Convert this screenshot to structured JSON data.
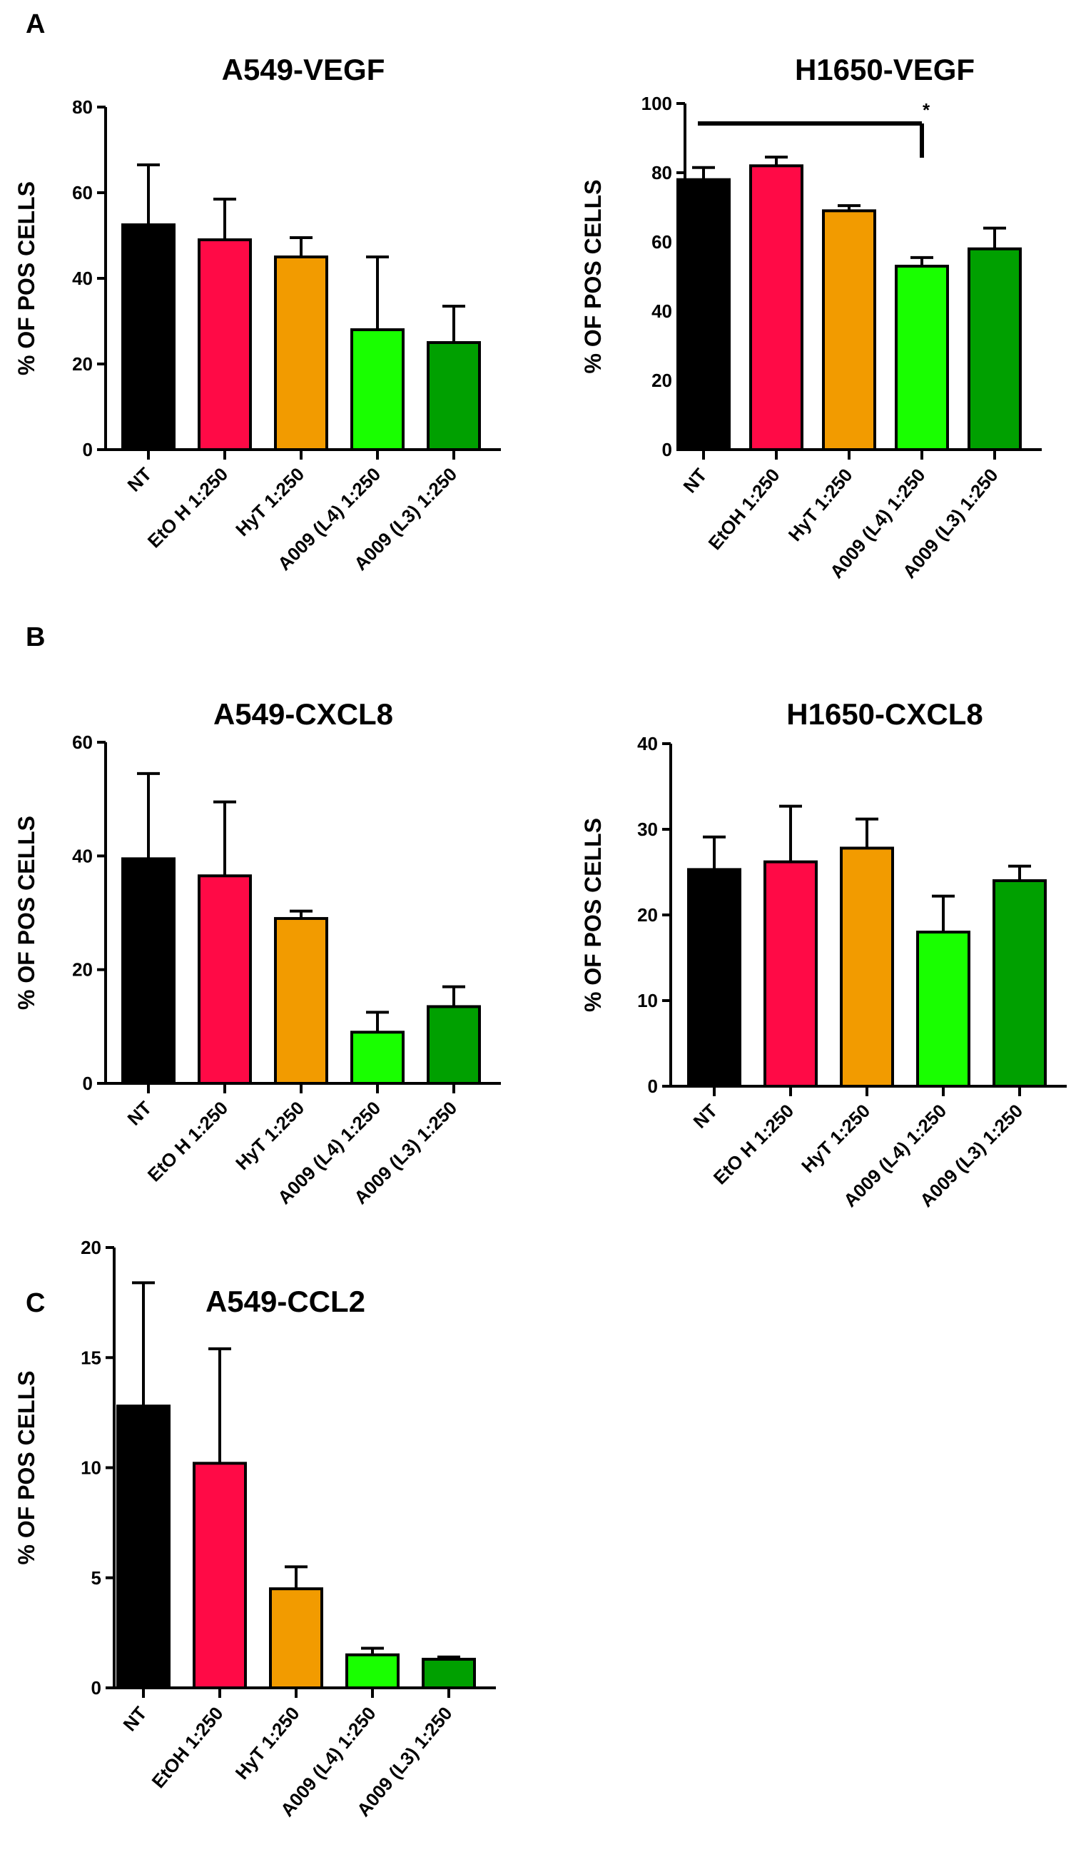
{
  "panel_labels": [
    "A",
    "B",
    "C"
  ],
  "colors": {
    "NT": "#000000",
    "EtOH": "#ff0a46",
    "HyT": "#f29b00",
    "A009_L4": "#19ff00",
    "A009_L3": "#00a000",
    "axis": "#000000"
  },
  "chart_data": [
    {
      "id": "a549-vegf",
      "panel": "A",
      "type": "bar",
      "title": "A549-VEGF",
      "ylabel": "% OF POS CELLS",
      "xlabel": "",
      "ylim": [
        0,
        80
      ],
      "yticks": [
        0,
        20,
        40,
        60,
        80
      ],
      "categories": [
        "NT",
        "EtO H 1:250",
        "HyT 1:250",
        "A009 (L4) 1:250",
        "A009 (L3) 1:250"
      ],
      "values": [
        52.5,
        49,
        45,
        28,
        25
      ],
      "errors": [
        14,
        9.5,
        4.5,
        17,
        8.5
      ],
      "significance": null
    },
    {
      "id": "h1650-vegf",
      "panel": "A",
      "type": "bar",
      "title": "H1650-VEGF",
      "ylabel": "% OF POS CELLS",
      "xlabel": "",
      "ylim": [
        0,
        100
      ],
      "yticks": [
        0,
        20,
        40,
        60,
        80,
        100
      ],
      "categories": [
        "NT",
        "EtOH 1:250",
        "HyT 1:250",
        "A009 (L4) 1:250",
        "A009 (L3) 1:250"
      ],
      "values": [
        78,
        82,
        69,
        53,
        58
      ],
      "errors": [
        3.5,
        2.5,
        1.5,
        2.5,
        6
      ],
      "significance": {
        "from": 0,
        "to": 3,
        "label": "*"
      }
    },
    {
      "id": "a549-cxcl8",
      "panel": "B",
      "type": "bar",
      "title": "A549-CXCL8",
      "ylabel": "% OF POS CELLS",
      "xlabel": "",
      "ylim": [
        0,
        60
      ],
      "yticks": [
        0,
        20,
        40,
        60
      ],
      "categories": [
        "NT",
        "EtO H 1:250",
        "HyT 1:250",
        "A009 (L4) 1:250",
        "A009 (L3) 1:250"
      ],
      "values": [
        39.5,
        36.5,
        29,
        9,
        13.5
      ],
      "errors": [
        15,
        13,
        1.3,
        3.5,
        3.5
      ],
      "significance": null
    },
    {
      "id": "h1650-cxcl8",
      "panel": "B",
      "type": "bar",
      "title": "H1650-CXCL8",
      "ylabel": "% OF POS CELLS",
      "xlabel": "",
      "ylim": [
        0,
        40
      ],
      "yticks": [
        0,
        10,
        20,
        30,
        40
      ],
      "categories": [
        "NT",
        "EtO H 1:250",
        "HyT 1:250",
        "A009 (L4) 1:250",
        "A009 (L3) 1:250"
      ],
      "values": [
        25.3,
        26.2,
        27.8,
        18,
        24
      ],
      "errors": [
        3.8,
        6.5,
        3.4,
        4.2,
        1.7
      ],
      "significance": null
    },
    {
      "id": "a549-ccl2",
      "panel": "C",
      "type": "bar",
      "title": "A549-CCL2",
      "ylabel": "% OF POS CELLS",
      "xlabel": "",
      "ylim": [
        0,
        20
      ],
      "yticks": [
        0,
        5,
        10,
        15,
        20
      ],
      "categories": [
        "NT",
        "EtOH 1:250",
        "HyT 1:250",
        "A009 (L4) 1:250",
        "A009 (L3) 1:250"
      ],
      "values": [
        12.8,
        10.2,
        4.5,
        1.5,
        1.3
      ],
      "errors": [
        5.6,
        5.2,
        1,
        0.3,
        0.1
      ],
      "significance": null
    }
  ]
}
